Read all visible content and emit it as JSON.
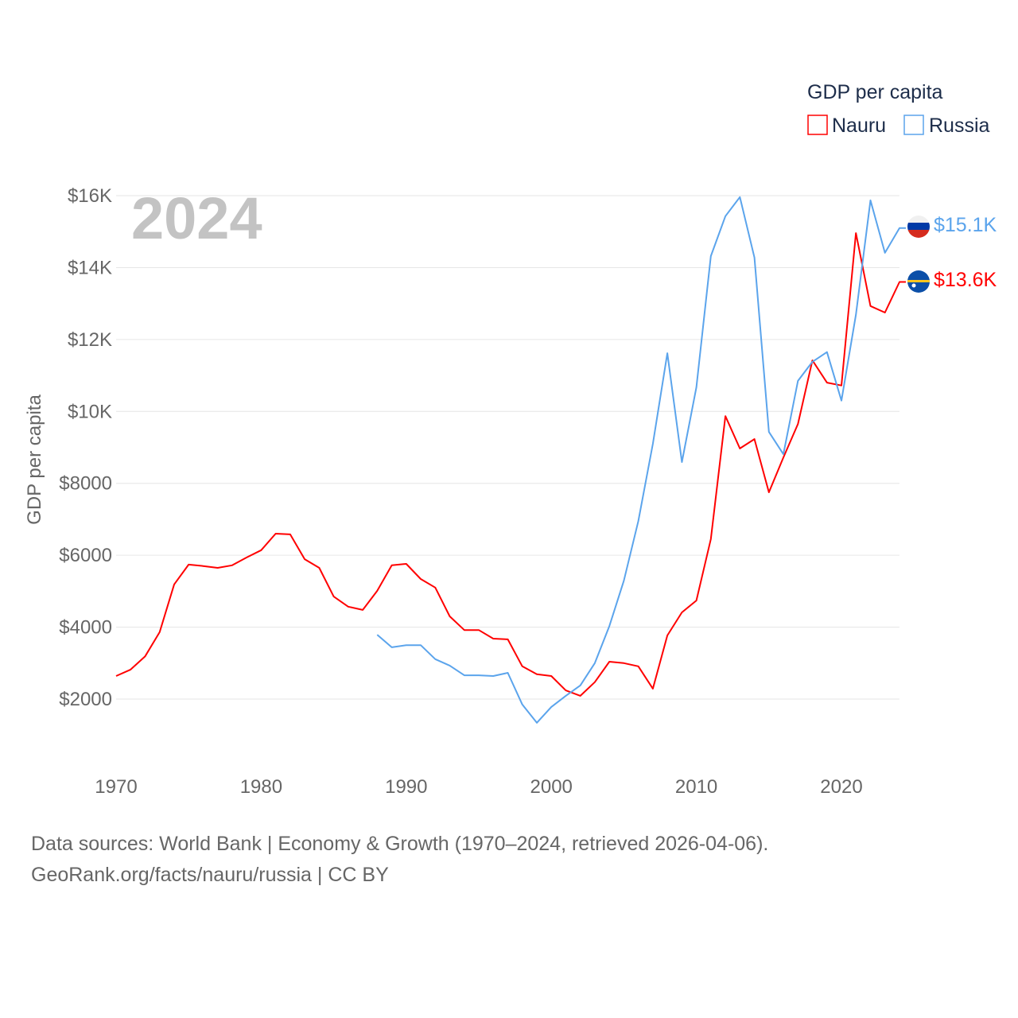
{
  "chart_data": {
    "type": "line",
    "title": "2024",
    "xlabel": "",
    "ylabel": "GDP per capita",
    "xlim": [
      1970,
      2024
    ],
    "ylim": [
      0,
      16000
    ],
    "grid": true,
    "legend": {
      "title": "GDP per capita",
      "placement": "top-right"
    },
    "x_ticks": [
      "1970",
      "1980",
      "1990",
      "2000",
      "2010",
      "2020"
    ],
    "x_tick_values": [
      1970,
      1980,
      1990,
      2000,
      2010,
      2020
    ],
    "y_ticks": [
      "$2000",
      "$4000",
      "$6000",
      "$8000",
      "$10K",
      "$12K",
      "$14K",
      "$16K"
    ],
    "y_tick_values": [
      2000,
      4000,
      6000,
      8000,
      10000,
      12000,
      14000,
      16000
    ],
    "series": [
      {
        "name": "Nauru",
        "color": "#ff0000",
        "end_label": "$13.6K",
        "start_year": 1970,
        "values": [
          2640,
          2820,
          3190,
          3860,
          5190,
          5740,
          5700,
          5650,
          5720,
          5940,
          6140,
          6600,
          6580,
          5890,
          5650,
          4850,
          4570,
          4480,
          5010,
          5720,
          5760,
          5340,
          5100,
          4300,
          3920,
          3920,
          3680,
          3660,
          2910,
          2690,
          2640,
          2240,
          2090,
          2470,
          3040,
          3000,
          2910,
          2290,
          3770,
          4410,
          4740,
          6450,
          9870,
          8970,
          9230,
          7750,
          8720,
          9650,
          11420,
          10800,
          10720,
          14960,
          12930,
          12750,
          13600
        ]
      },
      {
        "name": "Russia",
        "color": "#5ba4ec",
        "end_label": "$15.1K",
        "start_year": 1988,
        "values": [
          3790,
          3440,
          3500,
          3500,
          3110,
          2930,
          2660,
          2660,
          2640,
          2730,
          1850,
          1340,
          1780,
          2090,
          2380,
          3000,
          4030,
          5290,
          6950,
          9100,
          11620,
          8590,
          10670,
          14320,
          15430,
          15960,
          14280,
          9430,
          8810,
          10850,
          11380,
          11650,
          10300,
          12690,
          15870,
          14410,
          15100
        ]
      }
    ],
    "source_line1": "Data sources: World Bank | Economy & Growth (1970–2024, retrieved 2026-04-06).",
    "source_line2": "GeoRank.org/facts/nauru/russia | CC BY"
  }
}
